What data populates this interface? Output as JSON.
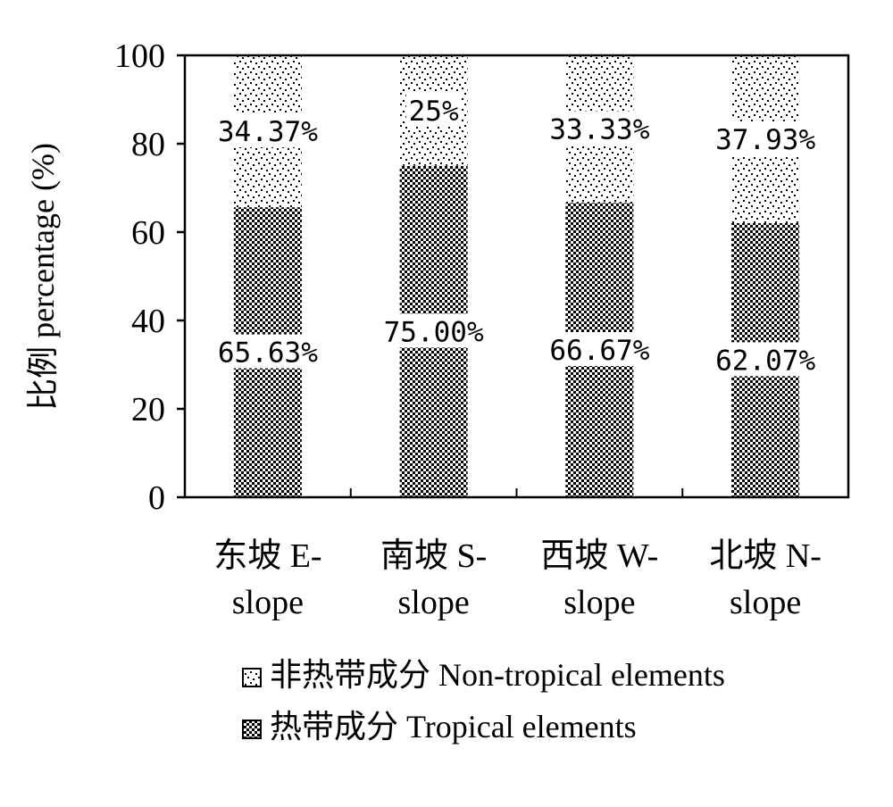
{
  "chart_data": {
    "type": "bar",
    "stacked": true,
    "percent": true,
    "categories": [
      "东坡 E-slope",
      "南坡 S-slope",
      "西坡 W-slope",
      "北坡 N-slope"
    ],
    "category_lines": [
      [
        "东坡 E-",
        "slope"
      ],
      [
        "南坡 S-",
        "slope"
      ],
      [
        "西坡 W-",
        "slope"
      ],
      [
        "北坡 N-",
        "slope"
      ]
    ],
    "series": [
      {
        "name": "热带成分 Tropical elements",
        "values": [
          65.63,
          75.0,
          66.67,
          62.07
        ],
        "labels": [
          "65.63%",
          "75.00%",
          "66.67%",
          "62.07%"
        ],
        "color": "#000000",
        "pattern": "dense-checker"
      },
      {
        "name": "非热带成分 Non-tropical elements",
        "values": [
          34.37,
          25,
          33.33,
          37.93
        ],
        "labels": [
          "34.37%",
          "25%",
          "33.33%",
          "37.93%"
        ],
        "color": "#000000",
        "pattern": "sparse-dots"
      }
    ],
    "ylabel": "比例 percentage (%)",
    "xlabel": "",
    "ylim": [
      0,
      100
    ],
    "yticks": [
      0,
      20,
      40,
      60,
      80,
      100
    ],
    "grid": false,
    "legend_position": "bottom",
    "legend_order": [
      "非热带成分 Non-tropical elements",
      "热带成分 Tropical elements"
    ]
  }
}
